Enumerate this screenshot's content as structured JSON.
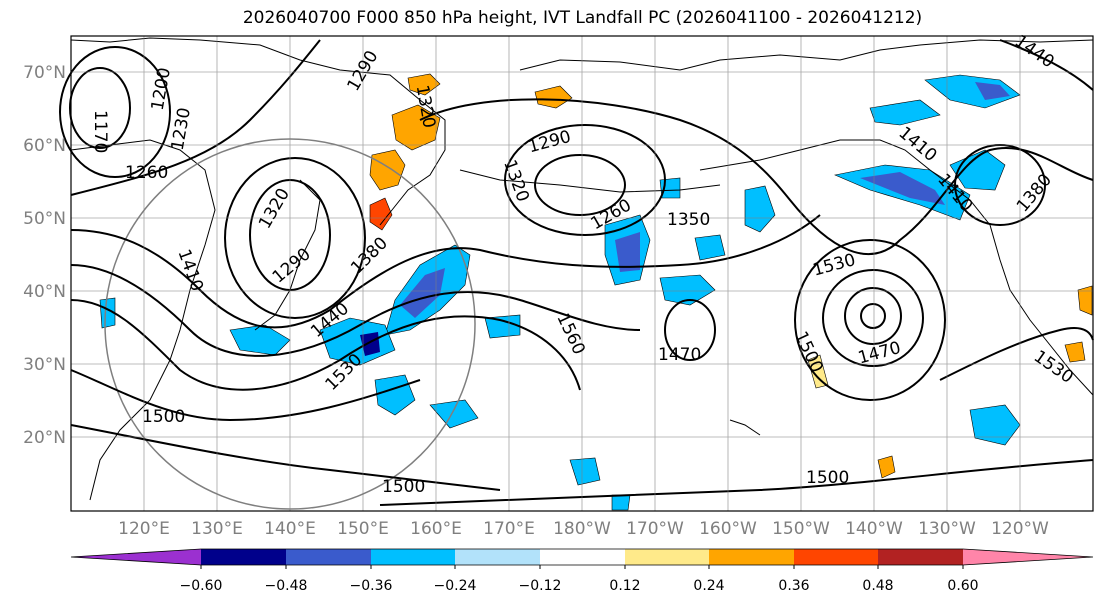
{
  "title": "2026040700 F000 850 hPa height, IVT Landfall PC (2026041100 - 2026041212)",
  "lat_labels": [
    "70°N",
    "60°N",
    "50°N",
    "40°N",
    "30°N",
    "20°N"
  ],
  "lon_labels": [
    "120°E",
    "130°E",
    "140°E",
    "150°E",
    "160°E",
    "170°E",
    "180°W",
    "170°W",
    "160°W",
    "150°W",
    "140°W",
    "130°W",
    "120°W"
  ],
  "colorbar": {
    "ticks": [
      "−0.60",
      "−0.48",
      "−0.36",
      "−0.24",
      "−0.12",
      "0.12",
      "0.24",
      "0.36",
      "0.48",
      "0.60"
    ],
    "colors": [
      "#9b30d0",
      "#00008b",
      "#3a5bcc",
      "#00bfff",
      "#b2e2fa",
      "#ffffff",
      "#ffea8a",
      "#ffa500",
      "#ff4500",
      "#b22222",
      "#ff85a9"
    ]
  },
  "contour_labels": [
    "1170",
    "1200",
    "1230",
    "1260",
    "1290",
    "1320",
    "1320",
    "1290",
    "1410",
    "1380",
    "1440",
    "1530",
    "1500",
    "1500",
    "1500",
    "1290",
    "1320",
    "1260",
    "1350",
    "1560",
    "1470",
    "1530",
    "1500",
    "1470",
    "1410",
    "1410",
    "1380",
    "1440",
    "1530"
  ]
}
